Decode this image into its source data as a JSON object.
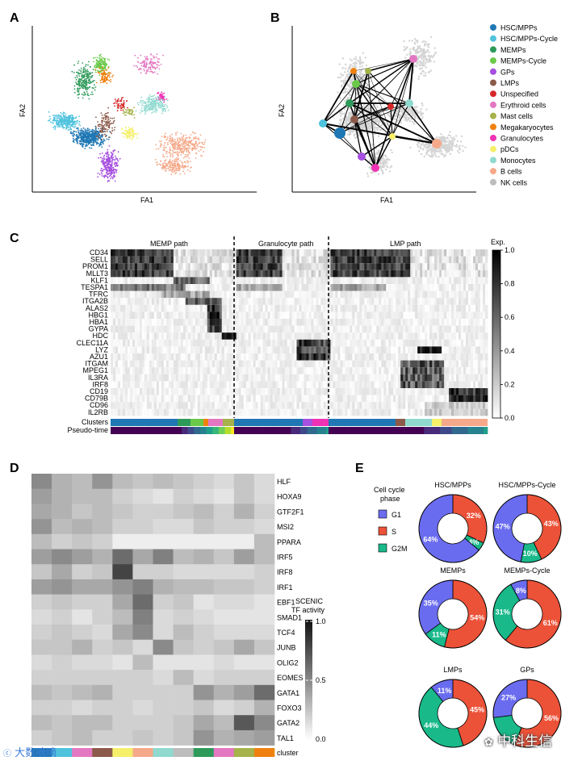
{
  "panels": {
    "A": "A",
    "B": "B",
    "C": "C",
    "D": "D",
    "E": "E"
  },
  "panelA": {
    "xlabel": "FA1",
    "ylabel": "FA2"
  },
  "panelB": {
    "xlabel": "FA1",
    "ylabel": "FA2"
  },
  "legend": [
    {
      "label": "HSC/MPPs",
      "color": "#1f77b4"
    },
    {
      "label": "HSC/MPPs-Cycle",
      "color": "#4fc3dd"
    },
    {
      "label": "MEMPs",
      "color": "#2e9a5a"
    },
    {
      "label": "MEMPs-Cycle",
      "color": "#6bc94a"
    },
    {
      "label": "GPs",
      "color": "#a64fe0"
    },
    {
      "label": "LMPs",
      "color": "#8c5a4a"
    },
    {
      "label": "Unspecified",
      "color": "#d62728"
    },
    {
      "label": "Erythroid cells",
      "color": "#e377c2"
    },
    {
      "label": "Mast cells",
      "color": "#a6b24a"
    },
    {
      "label": "Megakaryocytes",
      "color": "#f0810f"
    },
    {
      "label": "Granulocytes",
      "color": "#f032b4"
    },
    {
      "label": "pDCs",
      "color": "#f5ef6a"
    },
    {
      "label": "Monocytes",
      "color": "#8fd9cf"
    },
    {
      "label": "B cells",
      "color": "#f5a98a"
    },
    {
      "label": "NK cells",
      "color": "#bdbdbd"
    }
  ],
  "panelC": {
    "paths": [
      "MEMP path",
      "Granulocyte path",
      "LMP path"
    ],
    "genes": [
      "CD34",
      "SELL",
      "PROM1",
      "MLLT3",
      "KLF1",
      "TESPA1",
      "TFRC",
      "ITGA2B",
      "ALAS2",
      "HBG1",
      "HBA1",
      "GYPA",
      "HDC",
      "CLEC11A",
      "LYZ",
      "AZU1",
      "ITGAM",
      "MPEG1",
      "IL3RA",
      "IRF8",
      "CD19",
      "CD79B",
      "CD96",
      "IL2RB"
    ],
    "row_clusters": "Clusters",
    "row_pseudo": "Pseudo-time",
    "colorbar": {
      "title": "Exp.",
      "ticks": [
        "1.0",
        "0.8",
        "0.6",
        "0.4",
        "0.2",
        "0.0"
      ]
    }
  },
  "panelD": {
    "tfs": [
      "HLF",
      "HOXA9",
      "GTF2F1",
      "MSI2",
      "PPARA",
      "IRF5",
      "IRF8",
      "IRF1",
      "EBF1",
      "SMAD1",
      "TCF4",
      "JUNB",
      "OLIG2",
      "EOMES",
      "GATA1",
      "FOXO3",
      "GATA2",
      "TAL1"
    ],
    "cluster_label": "cluster",
    "colorbar": {
      "title1": "SCENIC",
      "title2": "TF activity",
      "ticks": [
        "1.0",
        "0.5",
        "0.0"
      ]
    },
    "cluster_colors": [
      "#1f77b4",
      "#4fc3dd",
      "#e377c2",
      "#8c5a4a",
      "#f5ef6a",
      "#f5a98a",
      "#8fd9cf",
      "#bdbdbd",
      "#2e9a5a",
      "#e377c2",
      "#a6b24a",
      "#f0810f"
    ],
    "values": [
      [
        0.55,
        0.35,
        0.3,
        0.5,
        0.3,
        0.25,
        0.3,
        0.25,
        0.2,
        0.15,
        0.25,
        0.15
      ],
      [
        0.45,
        0.35,
        0.3,
        0.3,
        0.2,
        0.15,
        0.1,
        0.2,
        0.15,
        0.1,
        0.25,
        0.15
      ],
      [
        0.4,
        0.35,
        0.25,
        0.3,
        0.25,
        0.2,
        0.2,
        0.25,
        0.3,
        0.2,
        0.35,
        0.2
      ],
      [
        0.5,
        0.3,
        0.35,
        0.3,
        0.2,
        0.2,
        0.15,
        0.15,
        0.25,
        0.2,
        0.2,
        0.15
      ],
      [
        0.3,
        0.2,
        0.25,
        0.2,
        0.05,
        0.05,
        0.05,
        0.05,
        0.05,
        0.05,
        0.05,
        0.3
      ],
      [
        0.45,
        0.55,
        0.45,
        0.35,
        0.7,
        0.4,
        0.6,
        0.3,
        0.35,
        0.25,
        0.45,
        0.3
      ],
      [
        0.25,
        0.4,
        0.2,
        0.25,
        0.9,
        0.2,
        0.2,
        0.15,
        0.15,
        0.15,
        0.15,
        0.2
      ],
      [
        0.45,
        0.5,
        0.4,
        0.4,
        0.5,
        0.6,
        0.35,
        0.3,
        0.3,
        0.25,
        0.25,
        0.2
      ],
      [
        0.2,
        0.25,
        0.2,
        0.2,
        0.4,
        0.7,
        0.2,
        0.25,
        0.1,
        0.15,
        0.15,
        0.1
      ],
      [
        0.15,
        0.2,
        0.1,
        0.2,
        0.3,
        0.6,
        0.15,
        0.2,
        0.15,
        0.1,
        0.1,
        0.1
      ],
      [
        0.2,
        0.25,
        0.2,
        0.15,
        0.4,
        0.55,
        0.15,
        0.3,
        0.2,
        0.15,
        0.15,
        0.15
      ],
      [
        0.25,
        0.25,
        0.35,
        0.2,
        0.25,
        0.15,
        0.55,
        0.25,
        0.2,
        0.25,
        0.4,
        0.25
      ],
      [
        0.15,
        0.2,
        0.15,
        0.15,
        0.1,
        0.3,
        0.1,
        0.1,
        0.1,
        0.15,
        0.1,
        0.1
      ],
      [
        0.2,
        0.2,
        0.2,
        0.2,
        0.2,
        0.2,
        0.15,
        0.3,
        0.15,
        0.2,
        0.2,
        0.2
      ],
      [
        0.3,
        0.25,
        0.3,
        0.35,
        0.2,
        0.2,
        0.2,
        0.2,
        0.5,
        0.35,
        0.45,
        0.7
      ],
      [
        0.2,
        0.2,
        0.15,
        0.2,
        0.2,
        0.15,
        0.2,
        0.2,
        0.25,
        0.15,
        0.2,
        0.35
      ],
      [
        0.3,
        0.25,
        0.3,
        0.3,
        0.2,
        0.2,
        0.2,
        0.25,
        0.4,
        0.3,
        0.8,
        0.55
      ],
      [
        0.2,
        0.25,
        0.3,
        0.2,
        0.2,
        0.25,
        0.2,
        0.25,
        0.5,
        0.35,
        0.4,
        0.45
      ]
    ]
  },
  "panelE": {
    "legend_title1": "Cell cycle",
    "legend_title2": "phase",
    "phases": [
      {
        "label": "G1",
        "color": "#6a6cf0"
      },
      {
        "label": "S",
        "color": "#ec5238"
      },
      {
        "label": "G2M",
        "color": "#19b98a"
      }
    ],
    "donuts": [
      {
        "title": "HSC/MPPs",
        "g1": 64,
        "s": 32,
        "g2m": 4,
        "g1_label": "64%",
        "s_label": "32%",
        "g2m_label": "4%"
      },
      {
        "title": "HSC/MPPs-Cycle",
        "g1": 47,
        "s": 43,
        "g2m": 10,
        "g1_label": "47%",
        "s_label": "43%",
        "g2m_label": "10%"
      },
      {
        "title": "MEMPs",
        "g1": 35,
        "s": 54,
        "g2m": 11,
        "g1_label": "35%",
        "s_label": "54%",
        "g2m_label": "11%"
      },
      {
        "title": "MEMPs-Cycle",
        "g1": 8,
        "s": 61,
        "g2m": 31,
        "g1_label": "8%",
        "s_label": "61%",
        "g2m_label": "31%"
      },
      {
        "title": "LMPs",
        "g1": 11,
        "s": 45,
        "g2m": 44,
        "g1_label": "11%",
        "s_label": "45%",
        "g2m_label": "44%"
      },
      {
        "title": "GPs",
        "g1": 27,
        "s": 56,
        "g2m": 17,
        "g1_label": "27%",
        "s_label": "56%",
        "g2m_label": ""
      }
    ]
  },
  "watermark": {
    "left": "大数嘀嘀",
    "right": "中科生信"
  }
}
